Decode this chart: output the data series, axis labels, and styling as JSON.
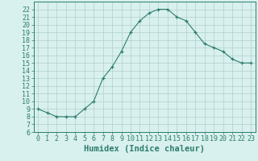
{
  "x": [
    0,
    1,
    2,
    3,
    4,
    5,
    6,
    7,
    8,
    9,
    10,
    11,
    12,
    13,
    14,
    15,
    16,
    17,
    18,
    19,
    20,
    21,
    22,
    23
  ],
  "y": [
    9,
    8.5,
    8,
    8,
    8,
    9,
    10,
    13,
    14.5,
    16.5,
    19,
    20.5,
    21.5,
    22,
    22,
    21,
    20.5,
    19,
    17.5,
    17,
    16.5,
    15.5,
    15,
    15
  ],
  "line_color": "#2d7d6e",
  "marker": "+",
  "bg_color": "#d8f0ee",
  "grid_color": "#b0d0cc",
  "xlabel": "Humidex (Indice chaleur)",
  "xlim": [
    -0.5,
    23.5
  ],
  "ylim": [
    6,
    23
  ],
  "xtick_labels": [
    "0",
    "1",
    "2",
    "3",
    "4",
    "5",
    "6",
    "7",
    "8",
    "9",
    "10",
    "11",
    "12",
    "13",
    "14",
    "15",
    "16",
    "17",
    "18",
    "19",
    "20",
    "21",
    "22",
    "23"
  ],
  "ytick_values": [
    6,
    7,
    8,
    9,
    10,
    11,
    12,
    13,
    14,
    15,
    16,
    17,
    18,
    19,
    20,
    21,
    22
  ],
  "axis_color": "#2d7d6e",
  "tick_color": "#2d7d6e",
  "xlabel_fontsize": 7.5,
  "tick_fontsize": 6.0
}
